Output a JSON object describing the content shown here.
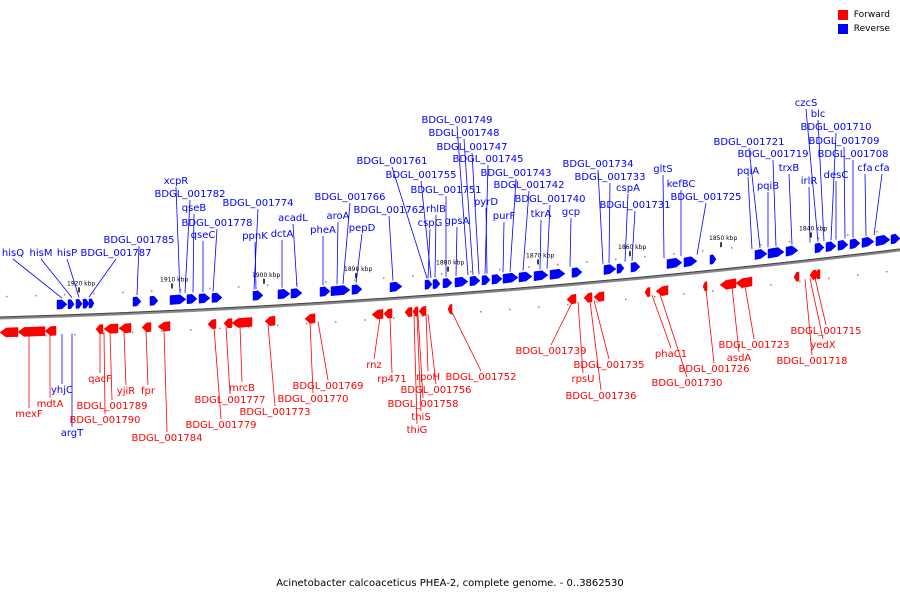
{
  "legend": [
    {
      "label": "Forward",
      "color": "#ff0000"
    },
    {
      "label": "Reverse",
      "color": "#0000ff"
    }
  ],
  "footer": "Acinetobacter calcoaceticus PHEA-2, complete genome. - 0..3862530",
  "colors": {
    "forward": "#ff0000",
    "reverse": "#0000ff",
    "backbone": "#888888"
  },
  "ticks": [
    "1920 kbp",
    "1910 kbp",
    "1900 kbp",
    "1890 kbp",
    "1880 kbp",
    "1870 kbp",
    "1860 kbp",
    "1850 kbp",
    "1840 kbp"
  ],
  "reverse_labels": [
    "hisQ",
    "hisM",
    "hisP",
    "BDGL_001787",
    "BDGL_001785",
    "BDGL_001782",
    "xcpR",
    "qseB",
    "qseC",
    "BDGL_001778",
    "BDGL_001774",
    "ppnK",
    "dctA",
    "acadL",
    "pheA",
    "aroA",
    "BDGL_001766",
    "pepD",
    "BDGL_001762",
    "BDGL_001761",
    "BDGL_001755",
    "cspG",
    "rhlB",
    "gpsA",
    "BDGL_001751",
    "BDGL_001749",
    "BDGL_001748",
    "BDGL_001747",
    "BDGL_001745",
    "pyrD",
    "purF",
    "BDGL_001743",
    "BDGL_001742",
    "tkrA",
    "BDGL_001740",
    "gcp",
    "BDGL_001734",
    "BDGL_001733",
    "cspA",
    "BDGL_001731",
    "gltS",
    "kefBC",
    "BDGL_001725",
    "pqiA",
    "BDGL_001721",
    "pqiB",
    "BDGL_001719",
    "trxB",
    "irlR",
    "czcS",
    "blc",
    "BDGL_001710",
    "desC",
    "BDGL_001709",
    "BDGL_001708",
    "cfa",
    "cfa",
    "yhjC",
    "argT"
  ],
  "forward_labels": [
    "mexF",
    "mdtA",
    "qacF",
    "BDGL_001789",
    "BDGL_001790",
    "yjiR",
    "fpr",
    "BDGL_001784",
    "mrcB",
    "BDGL_001777",
    "BDGL_001779",
    "BDGL_001773",
    "BDGL_001769",
    "BDGL_001770",
    "rnz",
    "rp471",
    "BDGL_001756",
    "rpoH",
    "BDGL_001758",
    "thiS",
    "thiG",
    "BDGL_001752",
    "BDGL_001739",
    "rpsU",
    "BDGL_001735",
    "BDGL_001736",
    "phaC1",
    "BDGL_001730",
    "BDGL_001726",
    "asdA",
    "BDGL_001723",
    "BDGL_001715",
    "yedX",
    "BDGL_001718"
  ]
}
